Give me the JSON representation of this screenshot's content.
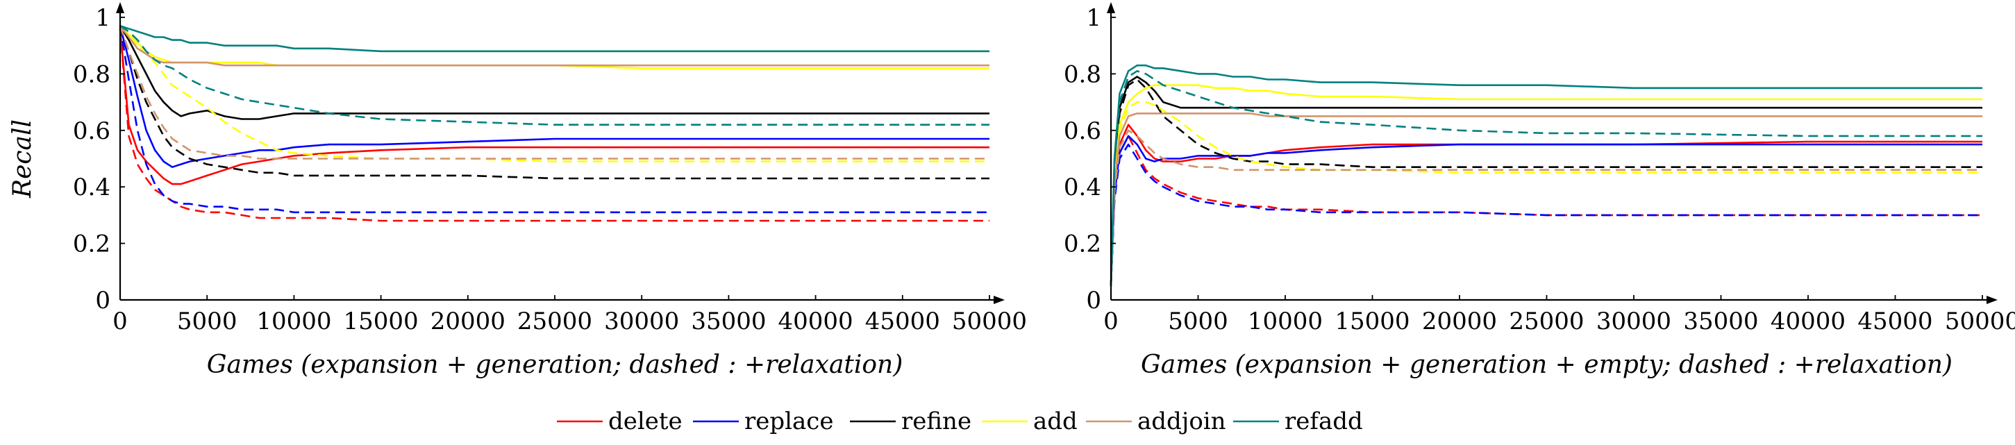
{
  "legend": [
    "delete",
    "replace",
    "refine",
    "add",
    "addjoin",
    "refadd"
  ],
  "colors": {
    "delete": "#ff0000",
    "replace": "#0000ff",
    "refine": "#000000",
    "add": "#ffff00",
    "addjoin": "#d2946c",
    "refadd": "#008080"
  },
  "chart_data": [
    {
      "type": "line",
      "xlabel": "Games (expansion + generation;  dashed : +relaxation)",
      "ylabel": "Recall",
      "xlim": [
        0,
        50000
      ],
      "ylim": [
        0,
        1
      ],
      "xticks": [
        0,
        5000,
        10000,
        15000,
        20000,
        25000,
        30000,
        35000,
        40000,
        45000,
        50000
      ],
      "yticks": [
        0,
        0.2,
        0.4,
        0.6,
        0.8,
        1
      ],
      "x": [
        0,
        500,
        1000,
        1500,
        2000,
        2500,
        3000,
        3500,
        4000,
        5000,
        6000,
        7000,
        8000,
        9000,
        10000,
        12000,
        15000,
        20000,
        25000,
        30000,
        40000,
        50000
      ],
      "series": [
        {
          "name": "delete",
          "style": "solid",
          "values": [
            0.96,
            0.62,
            0.53,
            0.49,
            0.46,
            0.43,
            0.41,
            0.41,
            0.42,
            0.44,
            0.46,
            0.48,
            0.49,
            0.5,
            0.51,
            0.52,
            0.53,
            0.54,
            0.54,
            0.54,
            0.54,
            0.54
          ]
        },
        {
          "name": "delete",
          "style": "dashed",
          "values": [
            0.96,
            0.58,
            0.48,
            0.43,
            0.39,
            0.37,
            0.35,
            0.33,
            0.32,
            0.31,
            0.31,
            0.3,
            0.29,
            0.29,
            0.29,
            0.29,
            0.28,
            0.28,
            0.28,
            0.28,
            0.28,
            0.28
          ]
        },
        {
          "name": "replace",
          "style": "solid",
          "values": [
            0.97,
            0.85,
            0.72,
            0.6,
            0.53,
            0.49,
            0.47,
            0.48,
            0.49,
            0.5,
            0.51,
            0.52,
            0.53,
            0.53,
            0.54,
            0.55,
            0.55,
            0.56,
            0.57,
            0.57,
            0.57,
            0.57
          ]
        },
        {
          "name": "replace",
          "style": "dashed",
          "values": [
            0.97,
            0.78,
            0.6,
            0.48,
            0.41,
            0.37,
            0.35,
            0.34,
            0.34,
            0.33,
            0.33,
            0.32,
            0.32,
            0.32,
            0.31,
            0.31,
            0.31,
            0.31,
            0.31,
            0.31,
            0.31,
            0.31
          ]
        },
        {
          "name": "refine",
          "style": "solid",
          "values": [
            0.97,
            0.92,
            0.86,
            0.8,
            0.74,
            0.7,
            0.67,
            0.65,
            0.66,
            0.67,
            0.65,
            0.64,
            0.64,
            0.65,
            0.66,
            0.66,
            0.66,
            0.66,
            0.66,
            0.66,
            0.66,
            0.66
          ]
        },
        {
          "name": "refine",
          "style": "dashed",
          "values": [
            0.97,
            0.88,
            0.78,
            0.7,
            0.64,
            0.58,
            0.54,
            0.52,
            0.5,
            0.48,
            0.47,
            0.46,
            0.45,
            0.45,
            0.44,
            0.44,
            0.44,
            0.44,
            0.43,
            0.43,
            0.43,
            0.43
          ]
        },
        {
          "name": "add",
          "style": "solid",
          "values": [
            0.97,
            0.94,
            0.91,
            0.88,
            0.86,
            0.85,
            0.84,
            0.84,
            0.84,
            0.84,
            0.84,
            0.84,
            0.84,
            0.83,
            0.83,
            0.83,
            0.83,
            0.83,
            0.83,
            0.82,
            0.82,
            0.82
          ]
        },
        {
          "name": "add",
          "style": "dashed",
          "values": [
            0.97,
            0.93,
            0.9,
            0.87,
            0.84,
            0.8,
            0.76,
            0.74,
            0.72,
            0.68,
            0.63,
            0.59,
            0.56,
            0.53,
            0.52,
            0.51,
            0.5,
            0.5,
            0.49,
            0.49,
            0.49,
            0.49
          ]
        },
        {
          "name": "addjoin",
          "style": "solid",
          "values": [
            0.97,
            0.93,
            0.89,
            0.87,
            0.85,
            0.84,
            0.84,
            0.84,
            0.84,
            0.84,
            0.83,
            0.83,
            0.83,
            0.83,
            0.83,
            0.83,
            0.83,
            0.83,
            0.83,
            0.83,
            0.83,
            0.83
          ]
        },
        {
          "name": "addjoin",
          "style": "dashed",
          "values": [
            0.97,
            0.88,
            0.8,
            0.72,
            0.66,
            0.61,
            0.57,
            0.55,
            0.53,
            0.52,
            0.51,
            0.51,
            0.5,
            0.5,
            0.5,
            0.5,
            0.5,
            0.5,
            0.5,
            0.5,
            0.5,
            0.5
          ]
        },
        {
          "name": "refadd",
          "style": "solid",
          "values": [
            0.97,
            0.96,
            0.95,
            0.94,
            0.93,
            0.93,
            0.92,
            0.92,
            0.91,
            0.91,
            0.9,
            0.9,
            0.9,
            0.9,
            0.89,
            0.89,
            0.88,
            0.88,
            0.88,
            0.88,
            0.88,
            0.88
          ]
        },
        {
          "name": "refadd",
          "style": "dashed",
          "values": [
            0.97,
            0.95,
            0.92,
            0.88,
            0.85,
            0.83,
            0.82,
            0.8,
            0.78,
            0.75,
            0.73,
            0.71,
            0.7,
            0.69,
            0.68,
            0.66,
            0.64,
            0.63,
            0.62,
            0.62,
            0.62,
            0.62
          ]
        }
      ]
    },
    {
      "type": "line",
      "xlabel": "Games (expansion + generation + empty;  dashed : +relaxation)",
      "ylabel": "",
      "xlim": [
        0,
        50000
      ],
      "ylim": [
        0,
        1
      ],
      "xticks": [
        0,
        5000,
        10000,
        15000,
        20000,
        25000,
        30000,
        35000,
        40000,
        45000,
        50000
      ],
      "yticks": [
        0,
        0.2,
        0.4,
        0.6,
        0.8,
        1
      ],
      "x": [
        0,
        200,
        500,
        1000,
        1500,
        2000,
        2500,
        3000,
        4000,
        5000,
        6000,
        7000,
        8000,
        9000,
        10000,
        12000,
        15000,
        20000,
        25000,
        30000,
        40000,
        50000
      ],
      "series": [
        {
          "name": "delete",
          "style": "solid",
          "values": [
            0.05,
            0.38,
            0.55,
            0.62,
            0.58,
            0.53,
            0.5,
            0.49,
            0.49,
            0.5,
            0.5,
            0.51,
            0.51,
            0.52,
            0.53,
            0.54,
            0.55,
            0.55,
            0.55,
            0.55,
            0.56,
            0.56
          ]
        },
        {
          "name": "delete",
          "style": "dashed",
          "values": [
            0.05,
            0.35,
            0.52,
            0.58,
            0.52,
            0.46,
            0.43,
            0.41,
            0.38,
            0.36,
            0.35,
            0.34,
            0.33,
            0.33,
            0.32,
            0.32,
            0.31,
            0.31,
            0.3,
            0.3,
            0.3,
            0.3
          ]
        },
        {
          "name": "replace",
          "style": "solid",
          "values": [
            0.05,
            0.37,
            0.52,
            0.58,
            0.55,
            0.5,
            0.49,
            0.5,
            0.5,
            0.51,
            0.51,
            0.51,
            0.51,
            0.52,
            0.52,
            0.53,
            0.54,
            0.55,
            0.55,
            0.55,
            0.55,
            0.55
          ]
        },
        {
          "name": "replace",
          "style": "dashed",
          "values": [
            0.05,
            0.35,
            0.5,
            0.55,
            0.5,
            0.45,
            0.42,
            0.4,
            0.37,
            0.35,
            0.34,
            0.33,
            0.33,
            0.32,
            0.32,
            0.31,
            0.31,
            0.31,
            0.3,
            0.3,
            0.3,
            0.3
          ]
        },
        {
          "name": "refine",
          "style": "solid",
          "values": [
            0.05,
            0.45,
            0.68,
            0.77,
            0.79,
            0.77,
            0.74,
            0.7,
            0.68,
            0.68,
            0.68,
            0.68,
            0.68,
            0.68,
            0.68,
            0.68,
            0.68,
            0.68,
            0.68,
            0.68,
            0.68,
            0.68
          ]
        },
        {
          "name": "refine",
          "style": "dashed",
          "values": [
            0.05,
            0.44,
            0.66,
            0.76,
            0.78,
            0.75,
            0.7,
            0.65,
            0.6,
            0.55,
            0.52,
            0.5,
            0.49,
            0.49,
            0.48,
            0.48,
            0.47,
            0.47,
            0.47,
            0.47,
            0.47,
            0.47
          ]
        },
        {
          "name": "add",
          "style": "solid",
          "values": [
            0.05,
            0.42,
            0.62,
            0.7,
            0.73,
            0.75,
            0.76,
            0.76,
            0.76,
            0.76,
            0.75,
            0.75,
            0.74,
            0.74,
            0.73,
            0.72,
            0.72,
            0.71,
            0.71,
            0.71,
            0.71,
            0.71
          ]
        },
        {
          "name": "add",
          "style": "dashed",
          "values": [
            0.05,
            0.4,
            0.6,
            0.68,
            0.7,
            0.7,
            0.69,
            0.67,
            0.63,
            0.58,
            0.54,
            0.51,
            0.49,
            0.48,
            0.47,
            0.46,
            0.46,
            0.45,
            0.45,
            0.45,
            0.45,
            0.45
          ]
        },
        {
          "name": "addjoin",
          "style": "solid",
          "values": [
            0.05,
            0.4,
            0.58,
            0.65,
            0.66,
            0.66,
            0.66,
            0.66,
            0.66,
            0.66,
            0.66,
            0.66,
            0.66,
            0.65,
            0.65,
            0.65,
            0.65,
            0.65,
            0.65,
            0.65,
            0.65,
            0.65
          ]
        },
        {
          "name": "addjoin",
          "style": "dashed",
          "values": [
            0.05,
            0.38,
            0.54,
            0.6,
            0.58,
            0.55,
            0.52,
            0.5,
            0.48,
            0.47,
            0.47,
            0.46,
            0.46,
            0.46,
            0.46,
            0.46,
            0.46,
            0.46,
            0.46,
            0.46,
            0.46,
            0.46
          ]
        },
        {
          "name": "refadd",
          "style": "solid",
          "values": [
            0.05,
            0.5,
            0.73,
            0.81,
            0.83,
            0.83,
            0.82,
            0.82,
            0.81,
            0.8,
            0.8,
            0.79,
            0.79,
            0.78,
            0.78,
            0.77,
            0.77,
            0.76,
            0.76,
            0.75,
            0.75,
            0.75
          ]
        },
        {
          "name": "refadd",
          "style": "dashed",
          "values": [
            0.05,
            0.48,
            0.7,
            0.79,
            0.81,
            0.8,
            0.78,
            0.76,
            0.74,
            0.72,
            0.7,
            0.68,
            0.67,
            0.66,
            0.65,
            0.63,
            0.62,
            0.6,
            0.59,
            0.59,
            0.58,
            0.58
          ]
        }
      ]
    }
  ]
}
